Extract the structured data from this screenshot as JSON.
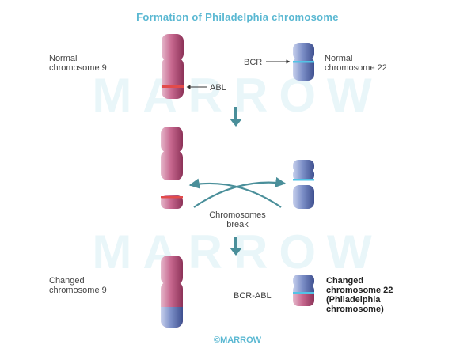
{
  "title": "Formation of Philadelphia chromosome",
  "watermark": "MARROW",
  "labels": {
    "normal_chr9": "Normal\nchromosome 9",
    "normal_chr22": "Normal\nchromosome 22",
    "bcr": "BCR",
    "abl": "ABL",
    "break": "Chromosomes\nbreak",
    "changed_chr9": "Changed\nchromosome 9",
    "bcr_abl": "BCR-ABL",
    "changed_chr22": "Changed\nchromosome 22\n(Philadelphia\nchromosome)"
  },
  "footer": "©MARROW",
  "colors": {
    "chr9": "#b5547c",
    "chr22": "#6a7fba",
    "abl_band": "#e24b4b",
    "bcr_band": "#52c3e6",
    "arrow": "#4a8f9a",
    "accent": "#5ab8d2"
  }
}
